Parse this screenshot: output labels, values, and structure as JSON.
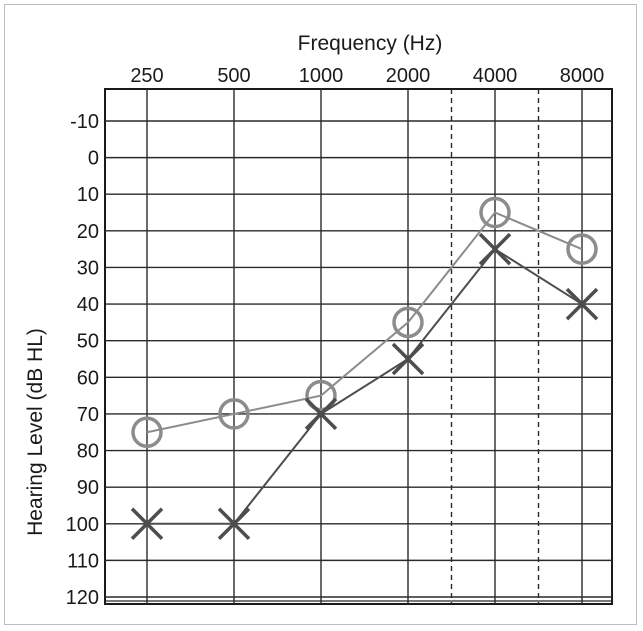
{
  "chart_data": {
    "type": "line",
    "title": "",
    "xlabel": "Frequency (Hz)",
    "ylabel": "Hearing Level (dB HL)",
    "x_categories": [
      "250",
      "500",
      "1000",
      "2000",
      "4000",
      "8000"
    ],
    "y_ticks": [
      "-10",
      "0",
      "10",
      "20",
      "30",
      "40",
      "50",
      "60",
      "70",
      "80",
      "90",
      "100",
      "110",
      "120"
    ],
    "ylim": [
      -10,
      120
    ],
    "y_inverted": true,
    "grid": true,
    "dashed_verticals_between": [
      [
        "2000",
        "4000"
      ],
      [
        "4000",
        "8000"
      ]
    ],
    "series": [
      {
        "marker": "circle",
        "color": "#8c8c8c",
        "values": [
          75,
          70,
          65,
          45,
          15,
          25
        ]
      },
      {
        "marker": "x",
        "color": "#4d4d4d",
        "values": [
          100,
          100,
          70,
          55,
          25,
          40
        ]
      }
    ]
  }
}
